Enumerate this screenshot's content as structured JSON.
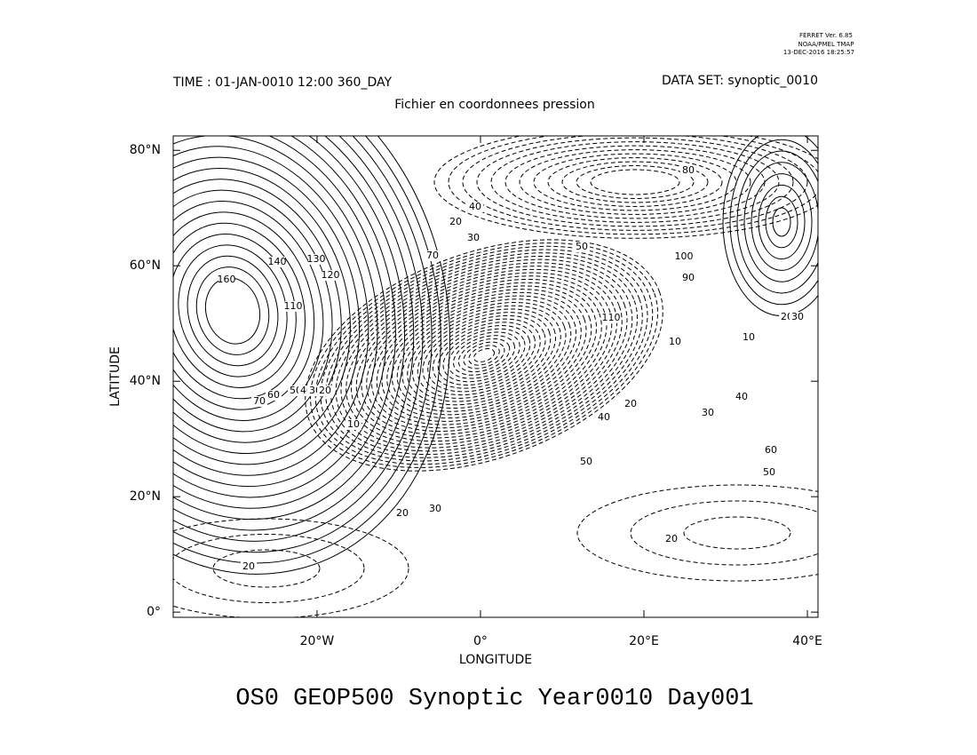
{
  "header": {
    "software": "FERRET Ver. 6.85",
    "lab": "NOAA/PMEL TMAP",
    "timestamp": "13-DEC-2016 18:25:57"
  },
  "chart_data": {
    "type": "contour",
    "time_label": "TIME : 01-JAN-0010 12:00 360_DAY",
    "dataset_label": "DATA SET: synoptic_0010",
    "subtitle": "Fichier en coordonnees pression",
    "title": "OS0 GEOP500 Synoptic Year0010 Day001",
    "xlabel": "LONGITUDE",
    "ylabel": "LATITUDE",
    "xlim": [
      -37.6,
      41.3
    ],
    "ylim": [
      -0.9,
      82.5
    ],
    "xticks": [
      {
        "value": -20,
        "label": "20°W"
      },
      {
        "value": 0,
        "label": "0°"
      },
      {
        "value": 20,
        "label": "20°E"
      },
      {
        "value": 40,
        "label": "40°E"
      }
    ],
    "yticks": [
      {
        "value": 0,
        "label": "0°"
      },
      {
        "value": 20,
        "label": "20°N"
      },
      {
        "value": 40,
        "label": "40°N"
      },
      {
        "value": 60,
        "label": "60°N"
      },
      {
        "value": 80,
        "label": "80°N"
      }
    ],
    "contour_labels": [
      160,
      140,
      130,
      120,
      110,
      70,
      60,
      50,
      40,
      30,
      20,
      70,
      20,
      40,
      30,
      50,
      80,
      100,
      90,
      110,
      10,
      20,
      40,
      50,
      30,
      20,
      20,
      20,
      10,
      10,
      20,
      30,
      40,
      30,
      60,
      50
    ]
  }
}
